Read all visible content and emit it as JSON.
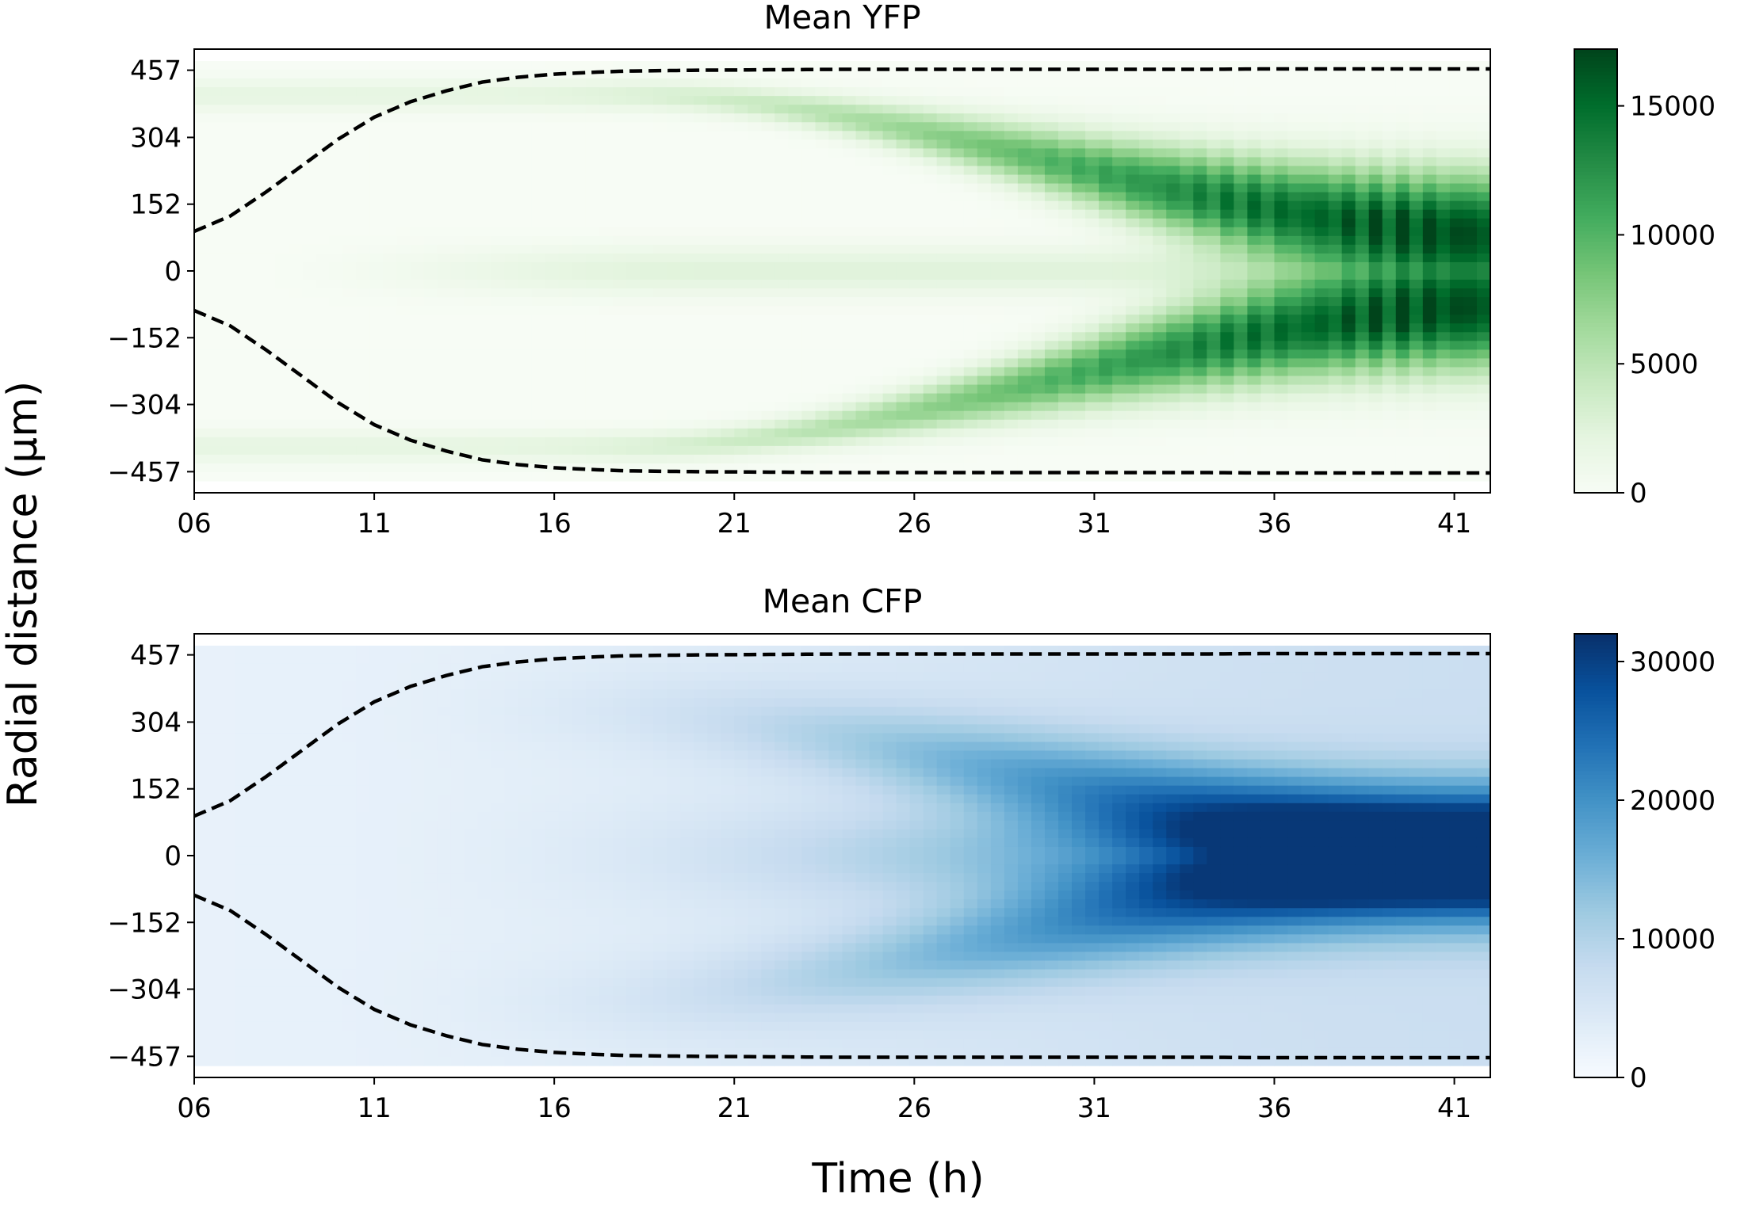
{
  "figure": {
    "ylabel": "Radial distance (μm)",
    "xlabel": "Time (h)"
  },
  "chart_data": [
    {
      "type": "heatmap",
      "title": "Mean YFP",
      "colormap": "Greens",
      "colormap_stops": [
        "#f7fcf5",
        "#e5f5e0",
        "#c7e9c0",
        "#a1d99b",
        "#74c476",
        "#41ab5d",
        "#238b45",
        "#006d2c",
        "#00441b"
      ],
      "x_ticks": [
        "06",
        "11",
        "16",
        "21",
        "26",
        "31",
        "36",
        "41"
      ],
      "x_range": [
        6,
        42
      ],
      "y_ticks": [
        "457",
        "304",
        "152",
        "0",
        "−152",
        "−304",
        "−457"
      ],
      "y_tick_values": [
        457,
        304,
        152,
        0,
        -152,
        -304,
        -457
      ],
      "y_range": [
        -505,
        505
      ],
      "colorbar": {
        "ticks": [
          "0",
          "5000",
          "10000",
          "15000"
        ],
        "tick_values": [
          0,
          5000,
          10000,
          15000
        ],
        "range": [
          0,
          17200
        ]
      },
      "intensity_ridge_peak": 16500,
      "intensity_center_peak": 2500,
      "boundary_dashed": {
        "time": [
          6,
          7,
          8,
          9,
          10,
          11,
          12,
          13,
          14,
          15,
          16,
          17,
          18,
          20,
          22,
          24,
          26,
          28,
          30,
          32,
          34,
          36,
          38,
          40,
          42
        ],
        "radius": [
          90,
          125,
          180,
          240,
          300,
          350,
          385,
          410,
          430,
          441,
          448,
          452,
          455,
          457,
          458,
          459,
          459,
          459,
          459,
          459,
          459,
          460,
          460,
          460,
          460
        ]
      }
    },
    {
      "type": "heatmap",
      "title": "Mean CFP",
      "colormap": "Blues",
      "colormap_stops": [
        "#f7fbff",
        "#deebf7",
        "#c6dbef",
        "#9ecae1",
        "#6baed6",
        "#4292c6",
        "#2171b5",
        "#08519c",
        "#08306b"
      ],
      "x_ticks": [
        "06",
        "11",
        "16",
        "21",
        "26",
        "31",
        "36",
        "41"
      ],
      "x_range": [
        6,
        42
      ],
      "y_ticks": [
        "457",
        "304",
        "152",
        "0",
        "−152",
        "−304",
        "−457"
      ],
      "y_tick_values": [
        457,
        304,
        152,
        0,
        -152,
        -304,
        -457
      ],
      "y_range": [
        -505,
        505
      ],
      "colorbar": {
        "ticks": [
          "0",
          "10000",
          "20000",
          "30000"
        ],
        "tick_values": [
          0,
          10000,
          20000,
          30000
        ],
        "range": [
          0,
          32000
        ]
      },
      "intensity_peak": 31000,
      "boundary_dashed": {
        "time": [
          6,
          7,
          8,
          9,
          10,
          11,
          12,
          13,
          14,
          15,
          16,
          17,
          18,
          20,
          22,
          24,
          26,
          28,
          30,
          32,
          34,
          36,
          38,
          40,
          42
        ],
        "radius": [
          90,
          125,
          180,
          240,
          300,
          350,
          385,
          410,
          430,
          441,
          448,
          452,
          455,
          457,
          458,
          459,
          459,
          459,
          459,
          459,
          459,
          460,
          460,
          460,
          460
        ]
      }
    }
  ]
}
